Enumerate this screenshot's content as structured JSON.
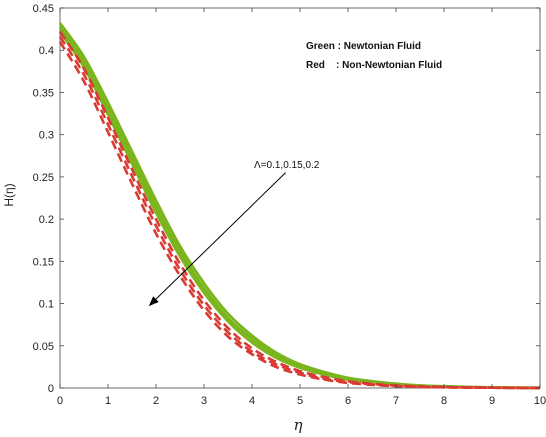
{
  "chart_data": {
    "type": "line",
    "title": "",
    "xlabel": "η",
    "ylabel": "H(η)",
    "xlim": [
      0,
      10
    ],
    "ylim": [
      0,
      0.45
    ],
    "xticks": [
      "0",
      "1",
      "2",
      "3",
      "4",
      "5",
      "6",
      "7",
      "8",
      "9",
      "10"
    ],
    "yticks": [
      "0",
      "0.05",
      "0.1",
      "0.15",
      "0.2",
      "0.25",
      "0.3",
      "0.35",
      "0.4",
      "0.45"
    ],
    "legend": {
      "placement": "top-right",
      "entries": [
        "Green : Newtonian Fluid",
        "Red    : Non-Newtonian Fluid"
      ]
    },
    "annotation": {
      "text": "Λ=0.1,0.15,0.2",
      "arrow_from": [
        4.7,
        0.255
      ],
      "arrow_to": [
        1.85,
        0.097
      ]
    },
    "colors": {
      "green": "#7ab51d",
      "red": "#d93a32"
    },
    "x": [
      0,
      0.5,
      1,
      1.5,
      2,
      2.5,
      3,
      3.5,
      4,
      4.5,
      5,
      5.5,
      6,
      6.5,
      7,
      7.5,
      8,
      8.5,
      9,
      9.5,
      10
    ],
    "series": [
      {
        "color": "green",
        "style": "solid",
        "values": [
          0.432,
          0.392,
          0.338,
          0.28,
          0.222,
          0.168,
          0.124,
          0.088,
          0.062,
          0.042,
          0.028,
          0.019,
          0.012,
          0.008,
          0.005,
          0.003,
          0.002,
          0.0012,
          0.0007,
          0.0004,
          0.0002
        ]
      },
      {
        "color": "green",
        "style": "solid",
        "values": [
          0.427,
          0.386,
          0.331,
          0.273,
          0.215,
          0.162,
          0.118,
          0.083,
          0.058,
          0.039,
          0.026,
          0.017,
          0.011,
          0.007,
          0.0045,
          0.0028,
          0.0017,
          0.001,
          0.0006,
          0.0003,
          0.0002
        ]
      },
      {
        "color": "green",
        "style": "solid",
        "values": [
          0.422,
          0.38,
          0.324,
          0.266,
          0.208,
          0.156,
          0.113,
          0.079,
          0.054,
          0.036,
          0.024,
          0.016,
          0.01,
          0.006,
          0.004,
          0.0025,
          0.0015,
          0.0009,
          0.0005,
          0.0003,
          0.0001
        ]
      },
      {
        "color": "red",
        "style": "dashed",
        "values": [
          0.422,
          0.378,
          0.32,
          0.259,
          0.2,
          0.147,
          0.104,
          0.071,
          0.047,
          0.031,
          0.02,
          0.013,
          0.008,
          0.005,
          0.003,
          0.0019,
          0.0011,
          0.0007,
          0.0004,
          0.0002,
          0.0001
        ]
      },
      {
        "color": "red",
        "style": "dashed",
        "values": [
          0.416,
          0.371,
          0.312,
          0.251,
          0.192,
          0.14,
          0.098,
          0.066,
          0.043,
          0.028,
          0.018,
          0.011,
          0.007,
          0.0043,
          0.0026,
          0.0016,
          0.0009,
          0.0005,
          0.0003,
          0.0002,
          0.0001
        ]
      },
      {
        "color": "red",
        "style": "dashed",
        "values": [
          0.41,
          0.363,
          0.303,
          0.242,
          0.183,
          0.133,
          0.092,
          0.061,
          0.04,
          0.025,
          0.016,
          0.01,
          0.006,
          0.0037,
          0.0022,
          0.0013,
          0.0008,
          0.0005,
          0.0003,
          0.0001,
          0.0001
        ]
      }
    ]
  }
}
